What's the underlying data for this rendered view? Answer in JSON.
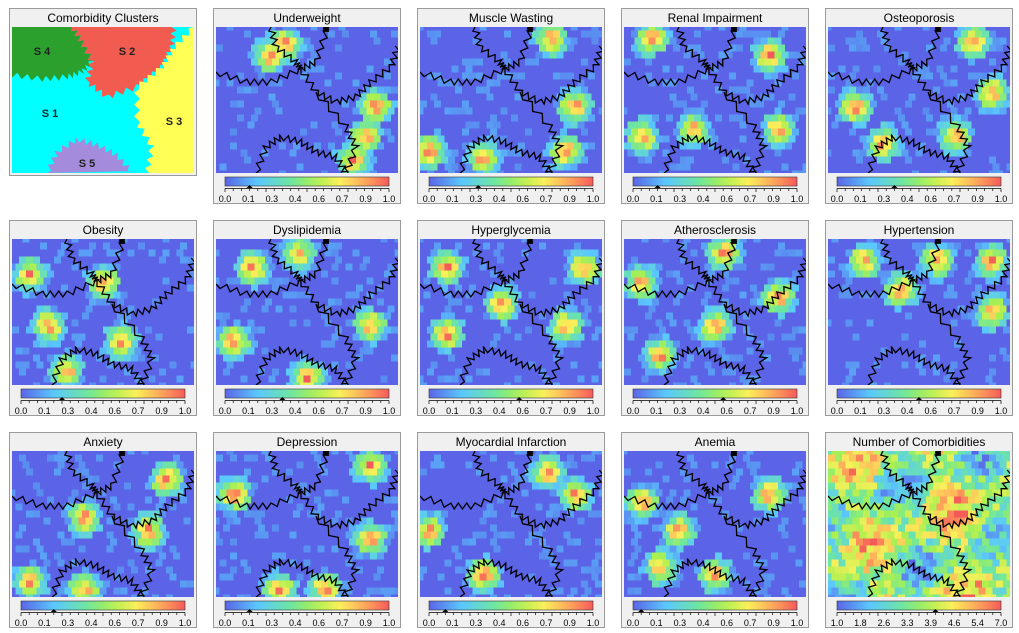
{
  "chart_data": [
    {
      "type": "heatmap",
      "title": "Comorbidity Clusters",
      "clusters": [
        {
          "name": "S 4",
          "color": "#2ca02c"
        },
        {
          "name": "S 2",
          "color": "#f25b50"
        },
        {
          "name": "S 1",
          "color": "#00ffff"
        },
        {
          "name": "S 3",
          "color": "#ffff55"
        },
        {
          "name": "S 5",
          "color": "#a58bdc"
        }
      ]
    },
    {
      "type": "heatmap",
      "title": "Underweight",
      "ticks": [
        "0.0",
        "0.1",
        "0.3",
        "0.4",
        "0.6",
        "0.7",
        "0.9",
        "1.0"
      ],
      "marker": 0.15,
      "hot": [
        [
          0.38,
          0.12
        ],
        [
          0.3,
          0.2
        ],
        [
          0.88,
          0.55
        ],
        [
          0.82,
          0.75
        ],
        [
          0.75,
          0.92
        ]
      ]
    },
    {
      "type": "heatmap",
      "title": "Muscle Wasting",
      "ticks": [
        "0.0",
        "0.1",
        "0.3",
        "0.4",
        "0.6",
        "0.7",
        "0.9",
        "1.0"
      ],
      "marker": 0.3,
      "hot": [
        [
          0.72,
          0.08
        ],
        [
          0.85,
          0.55
        ],
        [
          0.8,
          0.85
        ],
        [
          0.35,
          0.9
        ],
        [
          0.05,
          0.85
        ]
      ]
    },
    {
      "type": "heatmap",
      "title": "Renal Impairment",
      "ticks": [
        "0.0",
        "0.1",
        "0.3",
        "0.4",
        "0.6",
        "0.7",
        "0.9",
        "1.0"
      ],
      "marker": 0.15,
      "hot": [
        [
          0.8,
          0.2
        ],
        [
          0.38,
          0.7
        ],
        [
          0.1,
          0.75
        ],
        [
          0.85,
          0.7
        ],
        [
          0.15,
          0.08
        ]
      ]
    },
    {
      "type": "heatmap",
      "title": "Osteoporosis",
      "ticks": [
        "0.0",
        "0.1",
        "0.3",
        "0.4",
        "0.6",
        "0.7",
        "0.9",
        "1.0"
      ],
      "marker": 0.35,
      "hot": [
        [
          0.9,
          0.45
        ],
        [
          0.7,
          0.75
        ],
        [
          0.3,
          0.8
        ],
        [
          0.8,
          0.1
        ],
        [
          0.15,
          0.55
        ]
      ]
    },
    {
      "type": "heatmap",
      "title": "Obesity",
      "ticks": [
        "0.0",
        "0.1",
        "0.3",
        "0.4",
        "0.6",
        "0.7",
        "0.9",
        "1.0"
      ],
      "marker": 0.25,
      "hot": [
        [
          0.1,
          0.25
        ],
        [
          0.2,
          0.6
        ],
        [
          0.5,
          0.3
        ],
        [
          0.6,
          0.7
        ],
        [
          0.3,
          0.9
        ]
      ]
    },
    {
      "type": "heatmap",
      "title": "Dyslipidemia",
      "ticks": [
        "0.0",
        "0.1",
        "0.3",
        "0.4",
        "0.6",
        "0.7",
        "0.9",
        "1.0"
      ],
      "marker": 0.35,
      "hot": [
        [
          0.1,
          0.7
        ],
        [
          0.85,
          0.6
        ],
        [
          0.5,
          0.95
        ],
        [
          0.45,
          0.1
        ],
        [
          0.2,
          0.2
        ]
      ]
    },
    {
      "type": "heatmap",
      "title": "Hyperglycemia",
      "ticks": [
        "0.0",
        "0.1",
        "0.3",
        "0.4",
        "0.6",
        "0.7",
        "0.9",
        "1.0"
      ],
      "marker": 0.55,
      "hot": [
        [
          0.15,
          0.2
        ],
        [
          0.15,
          0.65
        ],
        [
          0.8,
          0.6
        ],
        [
          0.9,
          0.2
        ],
        [
          0.45,
          0.45
        ]
      ]
    },
    {
      "type": "heatmap",
      "title": "Atherosclerosis",
      "ticks": [
        "0.0",
        "0.1",
        "0.3",
        "0.4",
        "0.6",
        "0.7",
        "0.9",
        "1.0"
      ],
      "marker": 0.55,
      "hot": [
        [
          0.1,
          0.3
        ],
        [
          0.5,
          0.6
        ],
        [
          0.55,
          0.1
        ],
        [
          0.85,
          0.4
        ],
        [
          0.2,
          0.8
        ]
      ]
    },
    {
      "type": "heatmap",
      "title": "Hypertension",
      "ticks": [
        "0.0",
        "0.1",
        "0.3",
        "0.4",
        "0.6",
        "0.7",
        "0.9",
        "1.0"
      ],
      "marker": 0.5,
      "hot": [
        [
          0.2,
          0.15
        ],
        [
          0.6,
          0.15
        ],
        [
          0.9,
          0.15
        ],
        [
          0.9,
          0.5
        ],
        [
          0.4,
          0.35
        ]
      ]
    },
    {
      "type": "heatmap",
      "title": "Anxiety",
      "ticks": [
        "0.0",
        "0.1",
        "0.3",
        "0.4",
        "0.6",
        "0.7",
        "0.9",
        "1.0"
      ],
      "marker": 0.2,
      "hot": [
        [
          0.4,
          0.45
        ],
        [
          0.85,
          0.2
        ],
        [
          0.4,
          0.95
        ],
        [
          0.75,
          0.55
        ],
        [
          0.1,
          0.9
        ]
      ]
    },
    {
      "type": "heatmap",
      "title": "Depression",
      "ticks": [
        "0.0",
        "0.1",
        "0.3",
        "0.4",
        "0.6",
        "0.7",
        "0.9",
        "1.0"
      ],
      "marker": 0.15,
      "hot": [
        [
          0.85,
          0.1
        ],
        [
          0.35,
          0.95
        ],
        [
          0.6,
          0.95
        ],
        [
          0.1,
          0.3
        ],
        [
          0.85,
          0.6
        ]
      ]
    },
    {
      "type": "heatmap",
      "title": "Myocardial Infarction",
      "ticks": [
        "0.0",
        "0.1",
        "0.3",
        "0.4",
        "0.6",
        "0.7",
        "0.9",
        "1.0"
      ],
      "marker": 0.1,
      "hot": [
        [
          0.35,
          0.85
        ],
        [
          0.7,
          0.15
        ],
        [
          0.85,
          0.3
        ],
        [
          0.05,
          0.55
        ]
      ]
    },
    {
      "type": "heatmap",
      "title": "Anemia",
      "ticks": [
        "0.0",
        "0.1",
        "0.3",
        "0.4",
        "0.6",
        "0.7",
        "0.9",
        "1.0"
      ],
      "marker": 0.05,
      "hot": [
        [
          0.3,
          0.55
        ],
        [
          0.1,
          0.35
        ],
        [
          0.8,
          0.3
        ],
        [
          0.5,
          0.85
        ],
        [
          0.2,
          0.8
        ]
      ]
    },
    {
      "type": "heatmap",
      "title": "Number of Comorbidities",
      "ticks": [
        "1.0",
        "1.8",
        "2.6",
        "3.3",
        "3.9",
        "4.6",
        "5.4",
        "7.0"
      ],
      "marker": 0.6,
      "hot": []
    }
  ]
}
